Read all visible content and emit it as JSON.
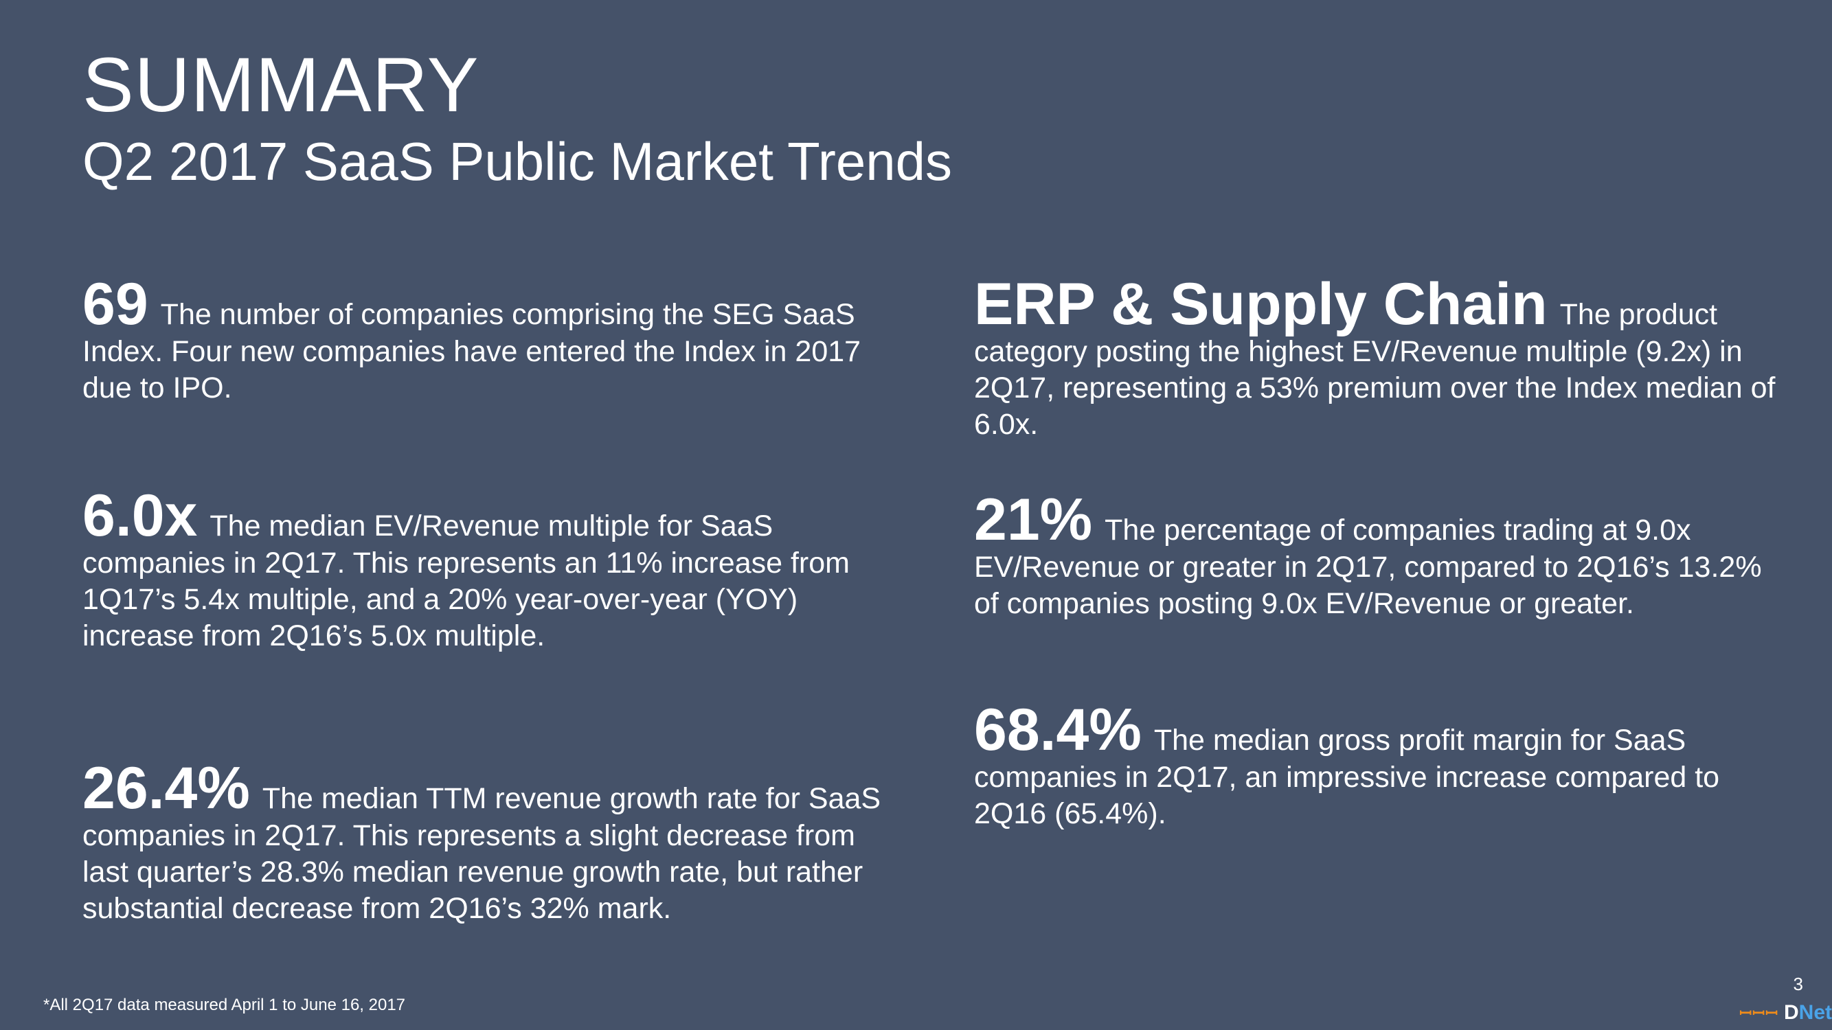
{
  "header": {
    "title": "SUMMARY",
    "subtitle": "Q2 2017 SaaS Public Market Trends"
  },
  "stats": [
    {
      "value": "69",
      "text": "The number of companies comprising the SEG SaaS Index. Four new companies have entered the Index in 2017 due to IPO."
    },
    {
      "value": "6.0x",
      "text": "The median EV/Revenue multiple for SaaS companies in 2Q17. This represents an 11% increase from 1Q17’s 5.4x multiple, and a 20% year-over-year (YOY) increase from 2Q16’s 5.0x multiple."
    },
    {
      "value": "26.4%",
      "text": "The median TTM revenue growth rate for SaaS companies in 2Q17. This represents a slight decrease from last quarter’s 28.3% median revenue growth rate, but rather substantial decrease from 2Q16’s 32% mark."
    },
    {
      "value": "ERP & Supply Chain",
      "text": "The product category posting the highest EV/Revenue multiple (9.2x) in 2Q17, representing a 53% premium over the Index median of 6.0x."
    },
    {
      "value": "21%",
      "text": "The percentage of companies trading at 9.0x EV/Revenue or greater in 2Q17, compared to 2Q16’s 13.2% of companies posting 9.0x EV/Revenue or greater."
    },
    {
      "value": "68.4%",
      "text": "The median gross profit margin for SaaS companies in 2Q17, an impressive increase compared to 2Q16 (65.4%)."
    }
  ],
  "footer": {
    "footnote": "*All 2Q17 data measured April 1 to June 16, 2017",
    "page_number": "3",
    "logo_prefix": "ꟷ⁠ꟷ⁠ꟷ",
    "logo_main": "Net",
    "logo_mark": "D"
  }
}
